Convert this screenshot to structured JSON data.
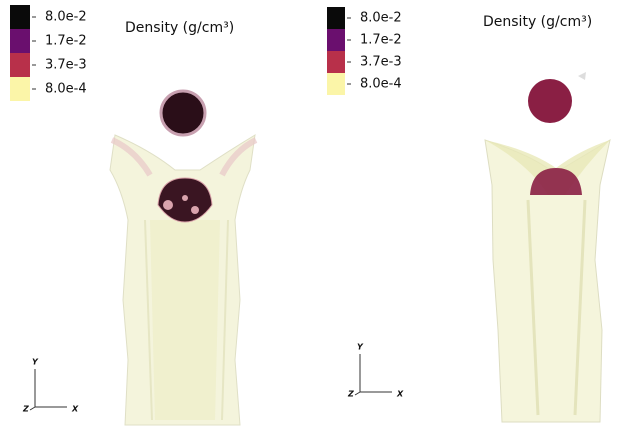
{
  "panels": [
    {
      "legend": [
        {
          "label": "8.0e-2",
          "color": "#0a0a0a"
        },
        {
          "label": "1.7e-2",
          "color": "#6a0f6e"
        },
        {
          "label": "3.7e-3",
          "color": "#b8304a"
        },
        {
          "label": "8.0e-4",
          "color": "#fbf5a8"
        }
      ],
      "title": "Density (g/cm³)",
      "axes": {
        "y": "Y",
        "z": "Z",
        "x": "X"
      }
    },
    {
      "legend": [
        {
          "label": "8.0e-2",
          "color": "#0a0a0a"
        },
        {
          "label": "1.7e-2",
          "color": "#6a0f6e"
        },
        {
          "label": "3.7e-3",
          "color": "#b8304a"
        },
        {
          "label": "8.0e-4",
          "color": "#fbf5a8"
        }
      ],
      "title": "Density (g/cm³)",
      "axes": {
        "y": "Y",
        "z": "Z",
        "x": "X"
      }
    }
  ]
}
